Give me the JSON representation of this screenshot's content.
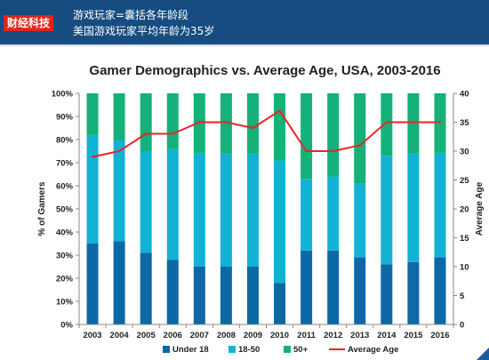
{
  "header": {
    "logo_text": "财经科技",
    "line1": "游戏玩家=囊括各年龄段",
    "line2": "美国游戏玩家平均年龄为35岁",
    "bg_color": "#164c80",
    "logo_color": "#e1251b"
  },
  "chart_data": {
    "type": "bar",
    "stacked": true,
    "title": "Gamer Demographics vs. Average Age, USA, 2003-2016",
    "categories": [
      "2003",
      "2004",
      "2005",
      "2006",
      "2007",
      "2008",
      "2009",
      "2010",
      "2011",
      "2012",
      "2013",
      "2014",
      "2015",
      "2016"
    ],
    "series": [
      {
        "name": "Under 18",
        "color": "#0c68a6",
        "values": [
          35,
          36,
          31,
          28,
          25,
          25,
          25,
          18,
          32,
          32,
          29,
          26,
          27,
          29
        ]
      },
      {
        "name": "18-50",
        "color": "#12b2d5",
        "values": [
          47,
          44,
          44,
          48,
          49,
          49,
          49,
          53,
          31,
          32,
          32,
          47,
          47,
          45
        ]
      },
      {
        "name": "50+",
        "color": "#14b178",
        "values": [
          18,
          20,
          25,
          24,
          26,
          26,
          26,
          29,
          37,
          36,
          39,
          27,
          26,
          26
        ]
      }
    ],
    "line_series": {
      "name": "Average Age",
      "color": "#e8262a",
      "values": [
        29,
        30,
        33,
        33,
        35,
        35,
        34,
        37,
        30,
        30,
        31,
        35,
        35,
        35
      ]
    },
    "ylabel": "% of Gamers",
    "y2label": "Average Age",
    "ylim": [
      0,
      100
    ],
    "y2lim": [
      0,
      40
    ],
    "yticks": [
      "0%",
      "10%",
      "20%",
      "30%",
      "40%",
      "50%",
      "60%",
      "70%",
      "80%",
      "90%",
      "100%"
    ],
    "y2ticks": [
      "0",
      "5",
      "10",
      "15",
      "20",
      "25",
      "30",
      "35",
      "40"
    ],
    "legend_position": "bottom"
  }
}
